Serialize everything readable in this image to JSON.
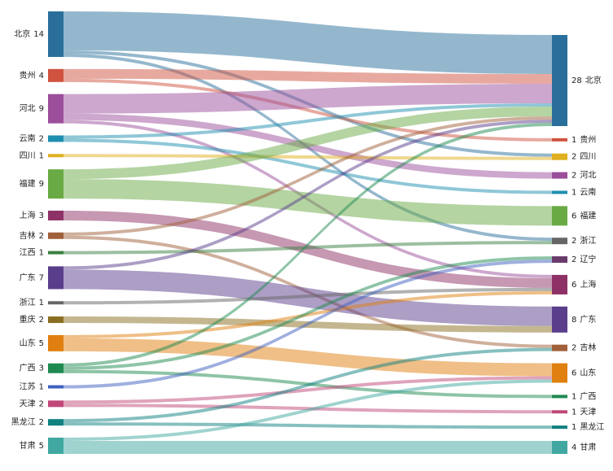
{
  "chart_data": {
    "type": "sankey",
    "left_nodes": [
      {
        "name": "北京",
        "value": 14,
        "color": "#2a6f9b"
      },
      {
        "name": "贵州",
        "value": 4,
        "color": "#d0533f"
      },
      {
        "name": "河北",
        "value": 9,
        "color": "#9b4f9b"
      },
      {
        "name": "云南",
        "value": 2,
        "color": "#1f8fb0"
      },
      {
        "name": "四川",
        "value": 1,
        "color": "#e0b020"
      },
      {
        "name": "福建",
        "value": 9,
        "color": "#6aaa45"
      },
      {
        "name": "上海",
        "value": 3,
        "color": "#8e3166"
      },
      {
        "name": "吉林",
        "value": 2,
        "color": "#a0603a"
      },
      {
        "name": "江西",
        "value": 1,
        "color": "#3a8040"
      },
      {
        "name": "广东",
        "value": 7,
        "color": "#5a3e8c"
      },
      {
        "name": "浙江",
        "value": 1,
        "color": "#666666"
      },
      {
        "name": "重庆",
        "value": 2,
        "color": "#8a6e20"
      },
      {
        "name": "山东",
        "value": 5,
        "color": "#e08010"
      },
      {
        "name": "广西",
        "value": 3,
        "color": "#1e8a50"
      },
      {
        "name": "江苏",
        "value": 1,
        "color": "#4060c0"
      },
      {
        "name": "天津",
        "value": 2,
        "color": "#c04878"
      },
      {
        "name": "黑龙江",
        "value": 2,
        "color": "#108080"
      },
      {
        "name": "甘肃",
        "value": 5,
        "color": "#40a8a0"
      }
    ],
    "right_nodes": [
      {
        "name": "北京",
        "value": 28,
        "color": "#2a6f9b"
      },
      {
        "name": "贵州",
        "value": 1,
        "color": "#d0533f"
      },
      {
        "name": "四川",
        "value": 2,
        "color": "#e0b020"
      },
      {
        "name": "河北",
        "value": 2,
        "color": "#9b4f9b"
      },
      {
        "name": "云南",
        "value": 1,
        "color": "#1f8fb0"
      },
      {
        "name": "福建",
        "value": 6,
        "color": "#6aaa45"
      },
      {
        "name": "浙江",
        "value": 2,
        "color": "#666666"
      },
      {
        "name": "辽宁",
        "value": 2,
        "color": "#6a3a6a"
      },
      {
        "name": "上海",
        "value": 6,
        "color": "#8e3166"
      },
      {
        "name": "广东",
        "value": 8,
        "color": "#5a3e8c"
      },
      {
        "name": "吉林",
        "value": 2,
        "color": "#a0603a"
      },
      {
        "name": "山东",
        "value": 6,
        "color": "#e08010"
      },
      {
        "name": "广西",
        "value": 1,
        "color": "#1e8a50"
      },
      {
        "name": "天津",
        "value": 1,
        "color": "#c04878"
      },
      {
        "name": "黑龙江",
        "value": 1,
        "color": "#108080"
      },
      {
        "name": "甘肃",
        "value": 4,
        "color": "#40a8a0"
      }
    ],
    "links": [
      {
        "source": 0,
        "target": 0,
        "value": 12
      },
      {
        "source": 0,
        "target": 2,
        "value": 1
      },
      {
        "source": 0,
        "target": 6,
        "value": 1
      },
      {
        "source": 1,
        "target": 0,
        "value": 3
      },
      {
        "source": 1,
        "target": 1,
        "value": 1
      },
      {
        "source": 2,
        "target": 0,
        "value": 6
      },
      {
        "source": 2,
        "target": 3,
        "value": 2
      },
      {
        "source": 2,
        "target": 8,
        "value": 1
      },
      {
        "source": 3,
        "target": 0,
        "value": 1
      },
      {
        "source": 3,
        "target": 4,
        "value": 1
      },
      {
        "source": 4,
        "target": 2,
        "value": 1
      },
      {
        "source": 5,
        "target": 0,
        "value": 3
      },
      {
        "source": 5,
        "target": 5,
        "value": 6
      },
      {
        "source": 6,
        "target": 8,
        "value": 3
      },
      {
        "source": 7,
        "target": 0,
        "value": 1
      },
      {
        "source": 7,
        "target": 10,
        "value": 1
      },
      {
        "source": 8,
        "target": 6,
        "value": 1
      },
      {
        "source": 9,
        "target": 0,
        "value": 1
      },
      {
        "source": 9,
        "target": 9,
        "value": 6
      },
      {
        "source": 10,
        "target": 8,
        "value": 1
      },
      {
        "source": 11,
        "target": 9,
        "value": 2
      },
      {
        "source": 12,
        "target": 8,
        "value": 1
      },
      {
        "source": 12,
        "target": 11,
        "value": 4
      },
      {
        "source": 13,
        "target": 0,
        "value": 1
      },
      {
        "source": 13,
        "target": 7,
        "value": 1
      },
      {
        "source": 13,
        "target": 12,
        "value": 1
      },
      {
        "source": 14,
        "target": 7,
        "value": 1
      },
      {
        "source": 15,
        "target": 11,
        "value": 1
      },
      {
        "source": 15,
        "target": 13,
        "value": 1
      },
      {
        "source": 16,
        "target": 10,
        "value": 1
      },
      {
        "source": 16,
        "target": 14,
        "value": 1
      },
      {
        "source": 17,
        "target": 11,
        "value": 1
      },
      {
        "source": 17,
        "target": 15,
        "value": 4
      }
    ]
  }
}
